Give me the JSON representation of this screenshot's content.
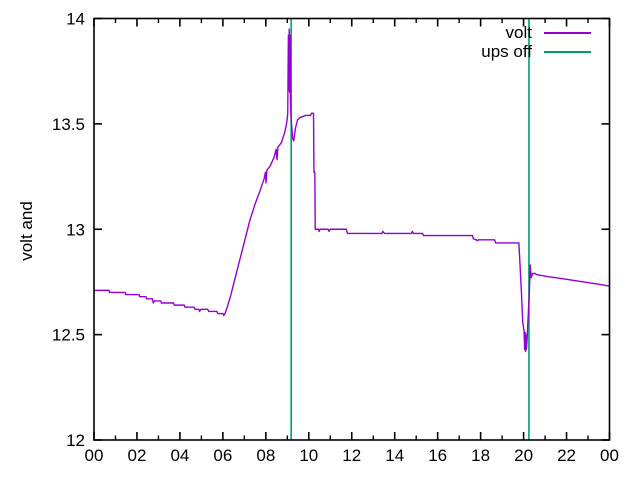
{
  "chart_data": {
    "type": "line",
    "title": "",
    "ylabel": "volt and",
    "background": "#ffffff",
    "border_color": "#000000",
    "grid": false,
    "x_axis": {
      "unit": "hours",
      "range": [
        0,
        24
      ],
      "major_tick_hours": [
        0,
        2,
        4,
        6,
        8,
        10,
        12,
        14,
        16,
        18,
        20,
        22,
        24
      ],
      "major_tick_labels": [
        "00",
        "02",
        "04",
        "06",
        "08",
        "10",
        "12",
        "14",
        "16",
        "18",
        "20",
        "22",
        "00"
      ],
      "minor_tick_hours": [
        1,
        3,
        5,
        7,
        9,
        11,
        13,
        15,
        17,
        19,
        21,
        23
      ],
      "mirrored_ticks": true
    },
    "y_axis": {
      "range": [
        12,
        14
      ],
      "ticks": [
        12,
        12.5,
        13,
        13.5,
        14
      ],
      "tick_labels": [
        "12",
        "12.5",
        "13",
        "13.5",
        "14"
      ],
      "mirrored_ticks": true
    },
    "legend": {
      "position": "top-right-inside",
      "entries": [
        {
          "label": "volt",
          "color": "#9400d3"
        },
        {
          "label": "ups off",
          "color": "#009e73"
        }
      ]
    },
    "series": [
      {
        "name": "volt",
        "color": "#9400d3",
        "points": [
          [
            0.0,
            12.71
          ],
          [
            0.7,
            12.71
          ],
          [
            0.72,
            12.7
          ],
          [
            1.45,
            12.7
          ],
          [
            1.47,
            12.69
          ],
          [
            2.1,
            12.69
          ],
          [
            2.12,
            12.68
          ],
          [
            2.42,
            12.68
          ],
          [
            2.45,
            12.67
          ],
          [
            2.72,
            12.67
          ],
          [
            2.76,
            12.65
          ],
          [
            2.82,
            12.66
          ],
          [
            3.1,
            12.66
          ],
          [
            3.14,
            12.65
          ],
          [
            3.7,
            12.65
          ],
          [
            3.74,
            12.64
          ],
          [
            4.2,
            12.64
          ],
          [
            4.24,
            12.63
          ],
          [
            4.65,
            12.63
          ],
          [
            4.7,
            12.62
          ],
          [
            4.88,
            12.62
          ],
          [
            4.91,
            12.61
          ],
          [
            4.98,
            12.62
          ],
          [
            5.3,
            12.62
          ],
          [
            5.34,
            12.61
          ],
          [
            5.72,
            12.61
          ],
          [
            5.76,
            12.6
          ],
          [
            6.0,
            12.6
          ],
          [
            6.04,
            12.59
          ],
          [
            6.1,
            12.6
          ],
          [
            6.2,
            12.63
          ],
          [
            6.35,
            12.68
          ],
          [
            6.55,
            12.76
          ],
          [
            6.8,
            12.86
          ],
          [
            7.0,
            12.94
          ],
          [
            7.25,
            13.04
          ],
          [
            7.5,
            13.12
          ],
          [
            7.72,
            13.18
          ],
          [
            7.92,
            13.24
          ],
          [
            7.98,
            13.27
          ],
          [
            8.01,
            13.22
          ],
          [
            8.05,
            13.28
          ],
          [
            8.2,
            13.3
          ],
          [
            8.38,
            13.34
          ],
          [
            8.48,
            13.38
          ],
          [
            8.52,
            13.33
          ],
          [
            8.56,
            13.39
          ],
          [
            8.72,
            13.41
          ],
          [
            8.88,
            13.46
          ],
          [
            8.98,
            13.51
          ],
          [
            9.02,
            13.55
          ],
          [
            9.05,
            13.92
          ],
          [
            9.07,
            13.66
          ],
          [
            9.09,
            13.95
          ],
          [
            9.11,
            13.65
          ],
          [
            9.13,
            13.92
          ],
          [
            9.15,
            13.6
          ],
          [
            9.18,
            13.52
          ],
          [
            9.25,
            13.43
          ],
          [
            9.3,
            13.42
          ],
          [
            9.38,
            13.48
          ],
          [
            9.48,
            13.52
          ],
          [
            9.6,
            13.53
          ],
          [
            9.85,
            13.54
          ],
          [
            10.08,
            13.54
          ],
          [
            10.12,
            13.55
          ],
          [
            10.22,
            13.55
          ],
          [
            10.24,
            13.27
          ],
          [
            10.28,
            13.27
          ],
          [
            10.3,
            13.0
          ],
          [
            10.45,
            13.0
          ],
          [
            10.48,
            12.99
          ],
          [
            10.53,
            13.0
          ],
          [
            10.9,
            13.0
          ],
          [
            10.94,
            12.99
          ],
          [
            11.0,
            13.0
          ],
          [
            11.75,
            13.0
          ],
          [
            11.8,
            12.98
          ],
          [
            13.4,
            12.98
          ],
          [
            13.45,
            12.99
          ],
          [
            13.52,
            12.98
          ],
          [
            14.78,
            12.98
          ],
          [
            14.82,
            12.99
          ],
          [
            14.88,
            12.98
          ],
          [
            15.3,
            12.98
          ],
          [
            15.34,
            12.97
          ],
          [
            17.62,
            12.97
          ],
          [
            17.66,
            12.955
          ],
          [
            17.8,
            12.95
          ],
          [
            17.84,
            12.945
          ],
          [
            17.9,
            12.95
          ],
          [
            18.65,
            12.95
          ],
          [
            18.7,
            12.935
          ],
          [
            19.78,
            12.935
          ],
          [
            19.84,
            12.82
          ],
          [
            19.9,
            12.7
          ],
          [
            19.96,
            12.56
          ],
          [
            20.02,
            12.52
          ],
          [
            20.05,
            12.43
          ],
          [
            20.07,
            12.51
          ],
          [
            20.09,
            12.42
          ],
          [
            20.11,
            12.5
          ],
          [
            20.13,
            12.43
          ],
          [
            20.16,
            12.47
          ],
          [
            20.2,
            12.56
          ],
          [
            20.26,
            12.68
          ],
          [
            20.31,
            12.83
          ],
          [
            20.35,
            12.77
          ],
          [
            20.42,
            12.79
          ],
          [
            20.55,
            12.79
          ],
          [
            20.6,
            12.785
          ],
          [
            20.85,
            12.78
          ],
          [
            21.15,
            12.775
          ],
          [
            21.5,
            12.77
          ],
          [
            21.85,
            12.765
          ],
          [
            22.15,
            12.76
          ],
          [
            22.8,
            12.75
          ],
          [
            23.1,
            12.745
          ],
          [
            23.45,
            12.74
          ],
          [
            23.72,
            12.735
          ],
          [
            24.0,
            12.73
          ]
        ]
      }
    ],
    "events": [
      {
        "name": "ups off",
        "color": "#009e73",
        "times": [
          9.18,
          20.25
        ],
        "full_height": true
      }
    ]
  }
}
